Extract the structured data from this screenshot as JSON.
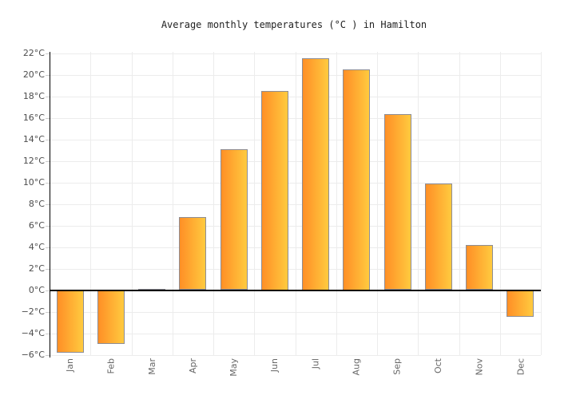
{
  "chart_data": {
    "type": "bar",
    "title": "Average monthly temperatures (°C ) in Hamilton",
    "categories": [
      "Jan",
      "Feb",
      "Mar",
      "Apr",
      "May",
      "Jun",
      "Jul",
      "Aug",
      "Sep",
      "Oct",
      "Nov",
      "Dec"
    ],
    "values": [
      -5.8,
      -5.0,
      0.1,
      6.8,
      13.1,
      18.5,
      21.5,
      20.5,
      16.3,
      9.9,
      4.2,
      -2.5
    ],
    "unit": "°C",
    "xlabel": "",
    "ylabel": "",
    "ylim": [
      -6,
      22
    ],
    "ytick_step": 2,
    "ytick_suffix": "°C",
    "grid": true,
    "legend": false,
    "colors": {
      "bar_gradient_left": "#ff8f26",
      "bar_gradient_right": "#ffca3f",
      "bar_border": "#8d8d95",
      "grid_line": "#ececec",
      "axis_line": "#000000",
      "zero_line": "#000000",
      "tick_label": "#4d4d4d",
      "month_label": "#666666",
      "title_color": "#222222",
      "background": "#ffffff"
    }
  }
}
